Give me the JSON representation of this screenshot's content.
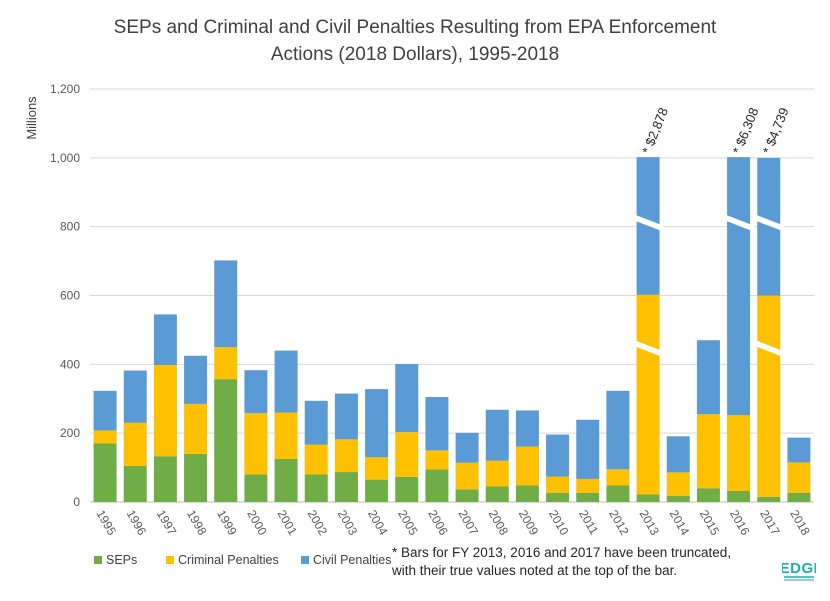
{
  "chart_data": {
    "type": "bar",
    "stacked": true,
    "title": "SEPs and Criminal and Civil Penalties Resulting from EPA Enforcement Actions (2018 Dollars), 1995-2018",
    "title_lines": [
      "SEPs and Criminal and Civil Penalties Resulting from EPA Enforcement",
      "Actions (2018 Dollars), 1995-2018"
    ],
    "ylabel": "Millions",
    "ylim": [
      0,
      1200
    ],
    "yticks": [
      0,
      200,
      400,
      600,
      800,
      1000,
      1200
    ],
    "ytick_labels": [
      "0",
      "200",
      "400",
      "600",
      "800",
      "1,000",
      "1,200"
    ],
    "categories": [
      "1995",
      "1996",
      "1997",
      "1998",
      "1999",
      "2000",
      "2001",
      "2002",
      "2003",
      "2004",
      "2005",
      "2006",
      "2007",
      "2008",
      "2009",
      "2010",
      "2011",
      "2012",
      "2013",
      "2014",
      "2015",
      "2016",
      "2017",
      "2018"
    ],
    "series": [
      {
        "name": "SEPs",
        "color": "#70AD47",
        "values": [
          170,
          105,
          133,
          140,
          357,
          80,
          125,
          80,
          87,
          65,
          73,
          95,
          37,
          45,
          48,
          27,
          27,
          48,
          22,
          18,
          40,
          32,
          15,
          27
        ]
      },
      {
        "name": "Criminal Penalties",
        "color": "#FFC000",
        "values": [
          38,
          125,
          265,
          145,
          93,
          178,
          135,
          87,
          95,
          65,
          130,
          55,
          77,
          75,
          113,
          47,
          40,
          47,
          580,
          68,
          215,
          220,
          585,
          88
        ]
      },
      {
        "name": "Civil Penalties",
        "color": "#5B9BD5",
        "values": [
          115,
          152,
          147,
          140,
          252,
          125,
          180,
          127,
          133,
          198,
          198,
          155,
          87,
          148,
          105,
          122,
          172,
          228,
          400,
          105,
          215,
          750,
          400,
          72
        ]
      }
    ],
    "truncated": [
      {
        "category": "2013",
        "label": "* $2,878"
      },
      {
        "category": "2016",
        "label": "* $6,308"
      },
      {
        "category": "2017",
        "label": "* $4,739"
      }
    ],
    "legend_position": "bottom-left",
    "grid": true,
    "note_lines": [
      "* Bars for FY 2013, 2016 and 2017 have been truncated,",
      "with their true values noted at the top of the bar."
    ],
    "logo_text": "EDGI"
  }
}
